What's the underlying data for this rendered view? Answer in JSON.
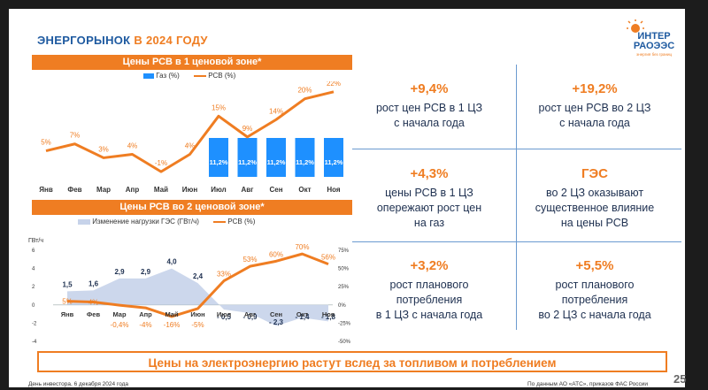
{
  "slide": {
    "title_part1": "ЭНЕРГОРЫНОК",
    "title_part2": "В 2024 ГОДУ",
    "logo_line1": "ИНТЕР",
    "logo_line2": "РАОЭЭС",
    "logo_tagline": "энергия без границ",
    "banner": "Цены на электроэнергию растут вслед за топливом и потреблением",
    "footer_left": "День инвестора, 6 декабря 2024 года",
    "footer_right": "По данным АО «АТС», приказов ФАС России",
    "page_number": "25"
  },
  "stats": [
    {
      "value": "+9,4%",
      "text": "рост цен РСВ в 1 ЦЗ\nс начала года"
    },
    {
      "value": "+19,2%",
      "text": "рост цен РСВ во 2 ЦЗ\nс начала года"
    },
    {
      "value": "+4,3%",
      "text": "цены РСВ в 1 ЦЗ\nопережают рост цен\nна газ"
    },
    {
      "value": "ГЭС",
      "text": "во 2 ЦЗ оказывают\nсущественное влияние\nна цены РСВ"
    },
    {
      "value": "+3,2%",
      "text": "рост планового\nпотребления\nв 1 ЦЗ с начала года"
    },
    {
      "value": "+5,5%",
      "text": "рост планового\nпотребления\nво 2 ЦЗ с начала года"
    }
  ],
  "colors": {
    "orange": "#ef7d22",
    "blue": "#1e90ff",
    "navy": "#1e5aa0",
    "hydro_area": "#c7d3ea"
  },
  "chart_data": [
    {
      "type": "bar",
      "title": "Цены РСВ в 1 ценовой зоне*",
      "categories": [
        "Янв",
        "Фев",
        "Мар",
        "Апр",
        "Май",
        "Июн",
        "Июл",
        "Авг",
        "Сен",
        "Окт",
        "Ноя"
      ],
      "series": [
        {
          "name": "Газ (%)",
          "type": "bar",
          "values": [
            null,
            null,
            null,
            null,
            null,
            null,
            11.2,
            11.2,
            11.2,
            11.2,
            11.2
          ],
          "labels": [
            "",
            "",
            "",
            "",
            "",
            "",
            "11,2%",
            "11,2%",
            "11,2%",
            "11,2%",
            "11,2%"
          ]
        },
        {
          "name": "РСВ (%)",
          "type": "line",
          "values": [
            5,
            7,
            3,
            4,
            -1,
            4,
            15,
            9,
            14,
            20,
            22
          ],
          "labels": [
            "5%",
            "7%",
            "3%",
            "4%",
            "-1%",
            "4%",
            "15%",
            "9%",
            "14%",
            "20%",
            "22%"
          ]
        }
      ],
      "ylim": [
        -3,
        24
      ]
    },
    {
      "type": "line",
      "title": "Цены РСВ во 2 ценовой зоне*",
      "categories": [
        "Янв",
        "Фев",
        "Мар",
        "Апр",
        "Май",
        "Июн",
        "Июл",
        "Авг",
        "Сен",
        "Окт",
        "Ноя"
      ],
      "series": [
        {
          "name": "Изменение нагрузки ГЭС (ГВт/ч)",
          "type": "area",
          "axis": "left",
          "values": [
            1.5,
            1.6,
            2.9,
            2.9,
            4.0,
            2.4,
            -0.5,
            -0.9,
            -2.3,
            -1.4,
            -1.8
          ],
          "labels": [
            "1,5",
            "1,6",
            "2,9",
            "2,9",
            "4,0",
            "2,4",
            "- 0,5",
            "- 0,9",
            "- 2,3",
            "- 1,4",
            "- 1,8"
          ]
        },
        {
          "name": "РСВ (%)",
          "type": "line",
          "axis": "right",
          "values": [
            5,
            4,
            -0.4,
            -4,
            -16,
            -5,
            33,
            53,
            60,
            70,
            56
          ],
          "labels": [
            "5%",
            "4%",
            "-0,4%",
            "-4%",
            "-16%",
            "-5%",
            "33%",
            "53%",
            "60%",
            "70%",
            "56%"
          ]
        }
      ],
      "ylabel_left": "ГВт/ч",
      "yticks_left": [
        "6",
        "4",
        "2",
        "0",
        "-2",
        "-4"
      ],
      "yticks_right": [
        "75%",
        "50%",
        "25%",
        "0%",
        "-25%",
        "-50%"
      ],
      "ylim_left": [
        -4,
        6
      ],
      "ylim_right": [
        -50,
        75
      ]
    }
  ]
}
